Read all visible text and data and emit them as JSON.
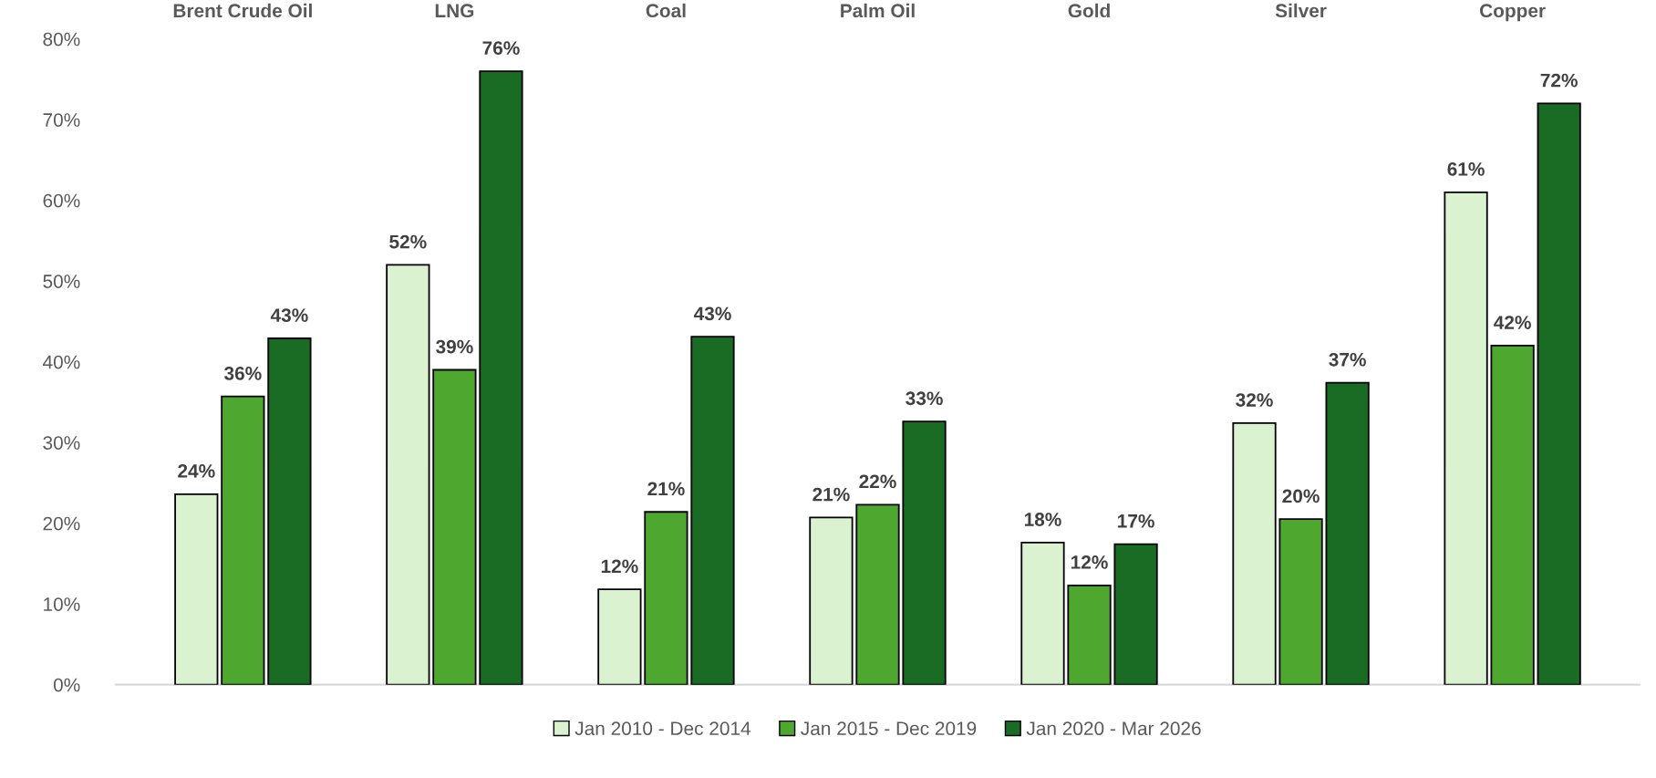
{
  "chart_data": {
    "type": "bar",
    "categories": [
      "Brent Crude Oil",
      "LNG",
      "Coal",
      "Palm Oil",
      "Gold",
      "Silver",
      "Copper"
    ],
    "series": [
      {
        "name": "Jan 2010 - Dec 2014",
        "color": "#daf2d0",
        "values": [
          23.6,
          52.0,
          11.8,
          20.7,
          17.6,
          32.4,
          61.0
        ],
        "value_labels": [
          "24%",
          "52%",
          "12%",
          "21%",
          "18%",
          "32%",
          "61%"
        ]
      },
      {
        "name": "Jan 2015 - Dec 2019",
        "color": "#4ea72e",
        "values": [
          35.7,
          39.0,
          21.4,
          22.3,
          12.3,
          20.5,
          42.0
        ],
        "value_labels": [
          "36%",
          "39%",
          "21%",
          "22%",
          "12%",
          "20%",
          "42%"
        ]
      },
      {
        "name": "Jan 2020 - Mar 2026",
        "color": "#1a6b24",
        "values": [
          42.9,
          76.0,
          43.1,
          32.6,
          17.4,
          37.4,
          72.0
        ],
        "value_labels": [
          "43%",
          "76%",
          "43%",
          "33%",
          "17%",
          "37%",
          "72%"
        ]
      }
    ],
    "ylim": [
      0,
      80
    ],
    "yticks": [
      {
        "value": 0,
        "label": "0%"
      },
      {
        "value": 10,
        "label": "10%"
      },
      {
        "value": 20,
        "label": "20%"
      },
      {
        "value": 30,
        "label": "30%"
      },
      {
        "value": 40,
        "label": "40%"
      },
      {
        "value": 50,
        "label": "50%"
      },
      {
        "value": 60,
        "label": "60%"
      },
      {
        "value": 70,
        "label": "70%"
      },
      {
        "value": 80,
        "label": "80%"
      }
    ],
    "grid": false,
    "legend": "bottom"
  }
}
